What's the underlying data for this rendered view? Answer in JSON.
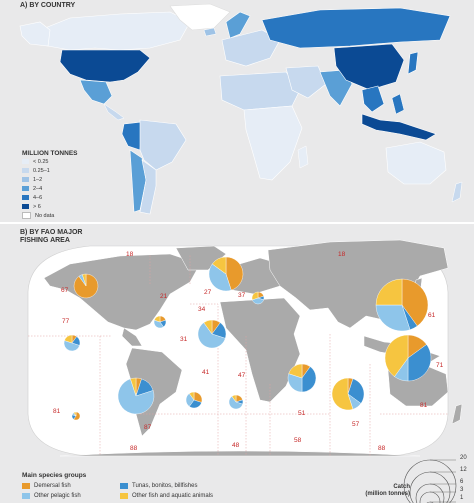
{
  "panel_a": {
    "title": "A) BY COUNTRY",
    "legend_title": "MILLION TONNES",
    "legend": [
      {
        "label": "< 0.25",
        "color": "#e6edf6"
      },
      {
        "label": "0.25–1",
        "color": "#c7d9ee"
      },
      {
        "label": "1–2",
        "color": "#9fc3e6"
      },
      {
        "label": "2–4",
        "color": "#5a9fd6"
      },
      {
        "label": "4–6",
        "color": "#2876c0"
      },
      {
        "label": "> 6",
        "color": "#0b4a94"
      },
      {
        "label": "No data",
        "color": "#ffffff"
      }
    ]
  },
  "panel_b": {
    "title_line1": "B) BY FAO MAJOR",
    "title_line2": "FISHING AREA",
    "areas": [
      "18",
      "18",
      "67",
      "21",
      "27",
      "37",
      "61",
      "77",
      "34",
      "31",
      "71",
      "41",
      "47",
      "51",
      "57",
      "81",
      "87",
      "48",
      "58",
      "88",
      "88",
      "81"
    ],
    "groups_title": "Main species groups",
    "groups": [
      {
        "label": "Demersal fish",
        "color": "#e89a2c"
      },
      {
        "label": "Tunas, bonitos, billfishes",
        "color": "#3b8fd0"
      },
      {
        "label": "Other pelagic fish",
        "color": "#8ec5ea"
      },
      {
        "label": "Other fish and aquatic animals",
        "color": "#f6c540"
      }
    ],
    "catch_legend": {
      "title_line1": "Catch",
      "title_line2": "(million tonnes)",
      "values": [
        "20",
        "12",
        "6",
        "3",
        "1"
      ]
    }
  },
  "colors": {
    "ocean_a": "#e9e9ea",
    "land_b": "#aaaaaa",
    "ocean_b": "#ffffff",
    "background_b": "#e9e9ea",
    "area_numbers": "#c62828"
  }
}
